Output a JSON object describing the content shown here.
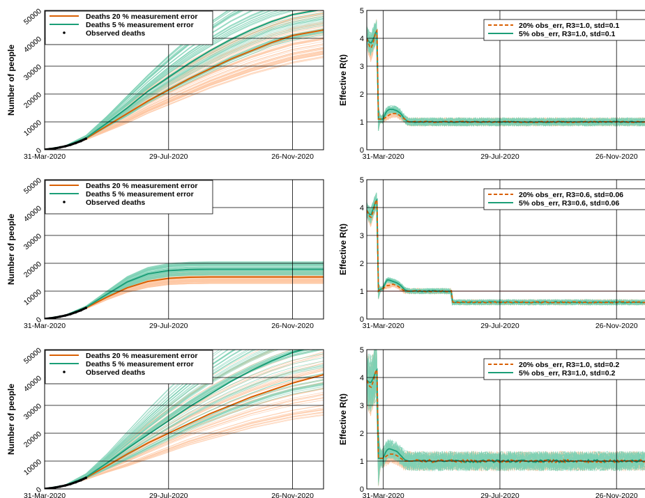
{
  "colors": {
    "orange": "#d95f02",
    "teal": "#1b9e77",
    "orange_band": "#fdc7a3",
    "teal_band": "#7fd1b5",
    "red_line": "#d62728",
    "grid": "#000000"
  },
  "chart_data": [
    {
      "type": "line",
      "panel": "deaths-1",
      "ylabel": "Number of people",
      "ylim": [
        0,
        50000
      ],
      "yticks": [
        0,
        10000,
        20000,
        30000,
        40000,
        50000
      ],
      "yticklabels": [
        "0",
        "10000",
        "20000",
        "30000",
        "40000",
        "50000"
      ],
      "xlim": [
        0,
        270
      ],
      "xticks": [
        0,
        120,
        240
      ],
      "xticklabels": [
        "31-Mar-2020",
        "29-Jul-2020",
        "26-Nov-2020"
      ],
      "legend": [
        "Deaths 20 % measurement error",
        "Deaths 5 % measurement error",
        "Observed deaths"
      ],
      "legend_position": "top-left",
      "x": [
        0,
        20,
        40,
        60,
        80,
        100,
        120,
        140,
        160,
        180,
        200,
        220,
        240,
        270
      ],
      "series": [
        {
          "name": "Deaths 20 % measurement error",
          "values": [
            60,
            1200,
            4000,
            8500,
            13000,
            17500,
            21500,
            25500,
            29000,
            32500,
            35500,
            38500,
            41000,
            43000
          ],
          "band_low": [
            60,
            1100,
            3500,
            6500,
            9500,
            13000,
            16000,
            19000,
            22000,
            24500,
            27000,
            29000,
            31000,
            33000
          ],
          "band_high": [
            60,
            1400,
            5000,
            11000,
            17000,
            22500,
            27500,
            32000,
            36000,
            40000,
            43500,
            46500,
            49000,
            51000
          ]
        },
        {
          "name": "Deaths 5 % measurement error",
          "values": [
            60,
            1300,
            4200,
            9500,
            15000,
            21000,
            26000,
            31000,
            35500,
            39500,
            43000,
            46000,
            48500,
            50500
          ],
          "band_low": [
            60,
            1200,
            3800,
            8000,
            12000,
            16500,
            20500,
            24000,
            27500,
            31000,
            34000,
            37000,
            39000,
            41000
          ],
          "band_high": [
            60,
            1450,
            5200,
            12000,
            19500,
            27000,
            34000,
            40500,
            46000,
            51000,
            55000,
            58000,
            60000,
            62000
          ]
        }
      ],
      "observed": {
        "x": [
          0,
          5,
          10,
          15,
          20,
          25,
          30,
          35,
          40
        ],
        "values": [
          60,
          250,
          500,
          850,
          1250,
          1750,
          2400,
          3100,
          4000
        ]
      }
    },
    {
      "type": "line",
      "panel": "rt-1",
      "ylabel": "Effective R(t)",
      "ylim": [
        0,
        5
      ],
      "yticks": [
        0,
        1,
        2,
        3,
        4,
        5
      ],
      "yticklabels": [
        "0",
        "1",
        "2",
        "3",
        "4",
        "5"
      ],
      "xlim": [
        -17,
        270
      ],
      "xticks": [
        0,
        120,
        240
      ],
      "xticklabels": [
        "31-Mar-2020",
        "29-Jul-2020",
        "26-Nov-2020"
      ],
      "legend": [
        "20% obs_err, R3=1.0, std=0.1",
        "5% obs_err, R3=1.0, std=0.1"
      ],
      "legend_position": "top-right",
      "band_noise": 0.15,
      "series": [
        {
          "name": "20% obs_err, R3=1.0, std=0.1",
          "style": "dashed",
          "x": [
            -17,
            -13,
            -10,
            -8,
            -6,
            -5,
            -4,
            0,
            2,
            4,
            6,
            10,
            14,
            18,
            22,
            26,
            30,
            270
          ],
          "values": [
            4.0,
            3.6,
            3.9,
            4.2,
            4.3,
            1.1,
            1.1,
            1.1,
            1.15,
            1.2,
            1.25,
            1.3,
            1.3,
            1.2,
            1.1,
            1.0,
            1.0,
            1.0
          ]
        },
        {
          "name": "5% obs_err, R3=1.0, std=0.1",
          "style": "solid",
          "x": [
            -17,
            -13,
            -10,
            -8,
            -6,
            -5,
            -4,
            0,
            2,
            4,
            6,
            10,
            14,
            18,
            22,
            26,
            30,
            270
          ],
          "values": [
            4.0,
            3.8,
            4.0,
            4.2,
            4.3,
            1.1,
            1.1,
            1.1,
            1.3,
            1.4,
            1.45,
            1.45,
            1.4,
            1.3,
            1.1,
            1.0,
            1.0,
            1.0
          ]
        }
      ]
    },
    {
      "type": "line",
      "panel": "deaths-2",
      "ylabel": "Number of people",
      "ylim": [
        0,
        50000
      ],
      "yticks": [
        0,
        10000,
        20000,
        30000,
        40000,
        50000
      ],
      "yticklabels": [
        "0",
        "10000",
        "20000",
        "30000",
        "40000",
        "50000"
      ],
      "xlim": [
        0,
        270
      ],
      "xticks": [
        0,
        120,
        240
      ],
      "xticklabels": [
        "31-Mar-2020",
        "29-Jul-2020",
        "26-Nov-2020"
      ],
      "legend": [
        "Deaths 20 % measurement error",
        "Deaths 5 % measurement error",
        "Observed deaths"
      ],
      "legend_position": "top-left",
      "x": [
        0,
        20,
        40,
        60,
        80,
        100,
        120,
        140,
        160,
        180,
        200,
        220,
        240,
        270
      ],
      "series": [
        {
          "name": "Deaths 20 % measurement error",
          "values": [
            60,
            1200,
            4000,
            7800,
            11200,
            13500,
            14600,
            15000,
            15100,
            15100,
            15100,
            15100,
            15100,
            15100
          ],
          "band_low": [
            60,
            1100,
            3600,
            6800,
            9500,
            11300,
            12300,
            12600,
            12700,
            12700,
            12700,
            12700,
            12700,
            12700
          ],
          "band_high": [
            60,
            1350,
            4600,
            9000,
            13000,
            15600,
            17000,
            17500,
            17600,
            17600,
            17600,
            17600,
            17600,
            17600
          ]
        },
        {
          "name": "Deaths 5 % measurement error",
          "values": [
            60,
            1300,
            4200,
            8800,
            13300,
            16200,
            17400,
            17800,
            17900,
            17900,
            17900,
            17900,
            17900,
            17900
          ],
          "band_low": [
            60,
            1200,
            3900,
            7800,
            11500,
            14000,
            15200,
            15600,
            15700,
            15700,
            15700,
            15700,
            15700,
            15700
          ],
          "band_high": [
            60,
            1400,
            4700,
            10000,
            15300,
            18600,
            20000,
            20500,
            20600,
            20600,
            20600,
            20600,
            20600,
            20600
          ]
        }
      ],
      "observed": {
        "x": [
          0,
          5,
          10,
          15,
          20,
          25,
          30,
          35,
          40
        ],
        "values": [
          60,
          250,
          500,
          850,
          1250,
          1750,
          2400,
          3100,
          4000
        ]
      }
    },
    {
      "type": "line",
      "panel": "rt-2",
      "ylabel": "Effective R(t)",
      "ylim": [
        0,
        5
      ],
      "yticks": [
        0,
        1,
        2,
        3,
        4,
        5
      ],
      "yticklabels": [
        "0",
        "1",
        "2",
        "3",
        "4",
        "5"
      ],
      "xlim": [
        -17,
        270
      ],
      "xticks": [
        0,
        120,
        240
      ],
      "xticklabels": [
        "31-Mar-2020",
        "29-Jul-2020",
        "26-Nov-2020"
      ],
      "legend": [
        "20% obs_err, R3=0.6, std=0.06",
        "5% obs_err, R3=0.6, std=0.06"
      ],
      "legend_position": "top-right",
      "reference_line": 1.0,
      "band_noise": 0.1,
      "series": [
        {
          "name": "20% obs_err, R3=0.6, std=0.06",
          "style": "dashed",
          "x": [
            -17,
            -13,
            -10,
            -8,
            -6,
            -5,
            -4,
            0,
            2,
            4,
            6,
            10,
            14,
            18,
            22,
            26,
            30,
            70,
            71,
            270
          ],
          "values": [
            3.9,
            3.6,
            3.9,
            4.2,
            4.3,
            1.0,
            1.05,
            1.1,
            1.15,
            1.2,
            1.2,
            1.25,
            1.2,
            1.1,
            1.0,
            1.0,
            1.0,
            1.0,
            0.6,
            0.6
          ]
        },
        {
          "name": "5% obs_err, R3=0.6, std=0.06",
          "style": "solid",
          "x": [
            -17,
            -13,
            -10,
            -8,
            -6,
            -5,
            -4,
            0,
            2,
            4,
            6,
            10,
            14,
            18,
            22,
            26,
            30,
            70,
            71,
            270
          ],
          "values": [
            3.9,
            3.7,
            4.0,
            4.2,
            4.3,
            1.0,
            1.05,
            1.1,
            1.3,
            1.4,
            1.4,
            1.35,
            1.3,
            1.2,
            1.05,
            1.0,
            1.0,
            1.0,
            0.6,
            0.6
          ]
        }
      ]
    },
    {
      "type": "line",
      "panel": "deaths-3",
      "ylabel": "Number of people",
      "ylim": [
        0,
        50000
      ],
      "yticks": [
        0,
        10000,
        20000,
        30000,
        40000,
        50000
      ],
      "yticklabels": [
        "0",
        "10000",
        "20000",
        "30000",
        "40000",
        "50000"
      ],
      "xlim": [
        0,
        270
      ],
      "xticks": [
        0,
        120,
        240
      ],
      "xticklabels": [
        "31-Mar-2020",
        "29-Jul-2020",
        "26-Nov-2020"
      ],
      "legend": [
        "Deaths 20 % measurement error",
        "Deaths 5 % measurement error",
        "Observed deaths"
      ],
      "legend_position": "top-left",
      "x": [
        0,
        20,
        40,
        60,
        80,
        100,
        120,
        140,
        160,
        180,
        200,
        220,
        240,
        270
      ],
      "series": [
        {
          "name": "Deaths 20 % measurement error",
          "values": [
            60,
            1200,
            4000,
            8200,
            12500,
            16500,
            20000,
            23500,
            27000,
            30000,
            33000,
            35500,
            38000,
            41000
          ],
          "band_low": [
            60,
            1100,
            3300,
            5800,
            8000,
            10500,
            13000,
            15500,
            17500,
            19500,
            21500,
            23000,
            24500,
            26000
          ],
          "band_high": [
            60,
            1400,
            5200,
            11500,
            18000,
            24500,
            30500,
            36000,
            41000,
            45500,
            49500,
            53000,
            56000,
            60000
          ]
        },
        {
          "name": "Deaths 5 % measurement error",
          "values": [
            60,
            1300,
            4200,
            9200,
            14500,
            19500,
            24500,
            29500,
            34000,
            38500,
            42500,
            46000,
            49000,
            52000
          ],
          "band_low": [
            60,
            1200,
            3700,
            7000,
            10500,
            14000,
            17500,
            21000,
            24000,
            27000,
            29500,
            32000,
            34000,
            36000
          ],
          "band_high": [
            60,
            1500,
            5500,
            12500,
            20500,
            28500,
            36000,
            43000,
            49500,
            55000,
            60000,
            64000,
            67000,
            70000
          ]
        }
      ],
      "observed": {
        "x": [
          0,
          5,
          10,
          15,
          20,
          25,
          30,
          35,
          40
        ],
        "values": [
          60,
          250,
          500,
          850,
          1250,
          1750,
          2400,
          3100,
          4000
        ]
      }
    },
    {
      "type": "line",
      "panel": "rt-3",
      "ylabel": "Effective R(t)",
      "ylim": [
        0,
        5
      ],
      "yticks": [
        0,
        1,
        2,
        3,
        4,
        5
      ],
      "yticklabels": [
        "0",
        "1",
        "2",
        "3",
        "4",
        "5"
      ],
      "xlim": [
        -17,
        270
      ],
      "xticks": [
        0,
        120,
        240
      ],
      "xticklabels": [
        "31-Mar-2020",
        "29-Jul-2020",
        "26-Nov-2020"
      ],
      "legend": [
        "20% obs_err, R3=1.0, std=0.2",
        "5% obs_err, R3=1.0, std=0.2"
      ],
      "legend_position": "top-right",
      "band_noise": 0.35,
      "series": [
        {
          "name": "20% obs_err, R3=1.0, std=0.2",
          "style": "dashed",
          "x": [
            -17,
            -13,
            -10,
            -8,
            -6,
            -5,
            -4,
            0,
            2,
            4,
            6,
            10,
            14,
            18,
            22,
            26,
            30,
            270
          ],
          "values": [
            3.9,
            3.6,
            3.9,
            4.2,
            4.3,
            1.1,
            1.1,
            1.1,
            1.15,
            1.2,
            1.25,
            1.25,
            1.2,
            1.1,
            1.0,
            1.0,
            1.0,
            1.0
          ]
        },
        {
          "name": "5% obs_err, R3=1.0, std=0.2",
          "style": "solid",
          "x": [
            -17,
            -13,
            -10,
            -8,
            -6,
            -5,
            -4,
            0,
            2,
            4,
            6,
            10,
            14,
            18,
            22,
            26,
            30,
            270
          ],
          "values": [
            3.9,
            3.8,
            4.0,
            4.2,
            4.3,
            1.1,
            1.1,
            1.1,
            1.3,
            1.4,
            1.45,
            1.4,
            1.35,
            1.2,
            1.05,
            1.0,
            1.0,
            1.0
          ]
        }
      ]
    }
  ]
}
